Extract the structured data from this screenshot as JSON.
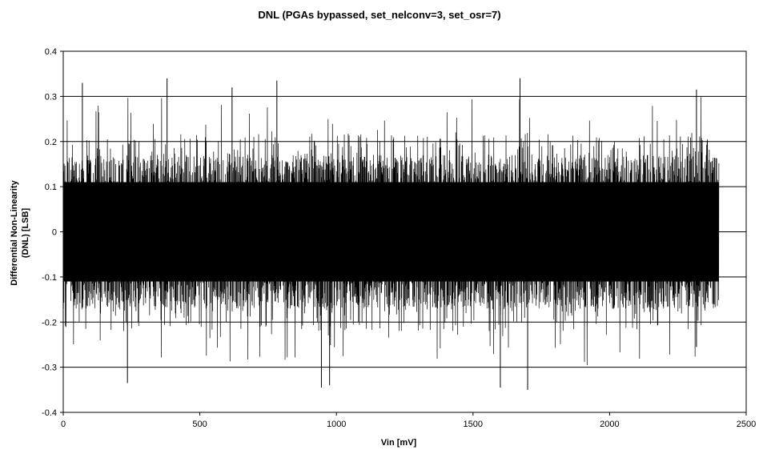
{
  "chart_data": {
    "type": "line",
    "title": "DNL (PGAs bypassed, set_nelconv=3, set_osr=7)",
    "xlabel": "Vin [mV]",
    "ylabel_lines": [
      "Differential Non-Linearity",
      "(DNL) [LSB]"
    ],
    "xlim": [
      0,
      2500
    ],
    "ylim": [
      -0.4,
      0.4
    ],
    "xticks": [
      "0",
      "500",
      "1000",
      "1500",
      "2000",
      "2500"
    ],
    "yticks": [
      "0.4",
      "0.3",
      "0.2",
      "0.1",
      "0",
      "-0.1",
      "-0.2",
      "-0.3",
      "-0.4"
    ],
    "grid": "horizontal major gridlines",
    "legend": "none",
    "line_color": "#000000",
    "series": [
      {
        "x_range": [
          0,
          2400
        ],
        "dense_band": [
          -0.15,
          0.15
        ],
        "approx_positive_peaks": [
          [
            70,
            0.33
          ],
          [
            380,
            0.34
          ],
          [
            618,
            0.32
          ],
          [
            782,
            0.335
          ],
          [
            1672,
            0.34
          ],
          [
            2318,
            0.315
          ]
        ],
        "approx_negative_peaks": [
          [
            235,
            -0.335
          ],
          [
            945,
            -0.345
          ],
          [
            975,
            -0.34
          ],
          [
            1600,
            -0.345
          ],
          [
            1700,
            -0.35
          ],
          [
            2318,
            -0.255
          ]
        ]
      }
    ]
  }
}
